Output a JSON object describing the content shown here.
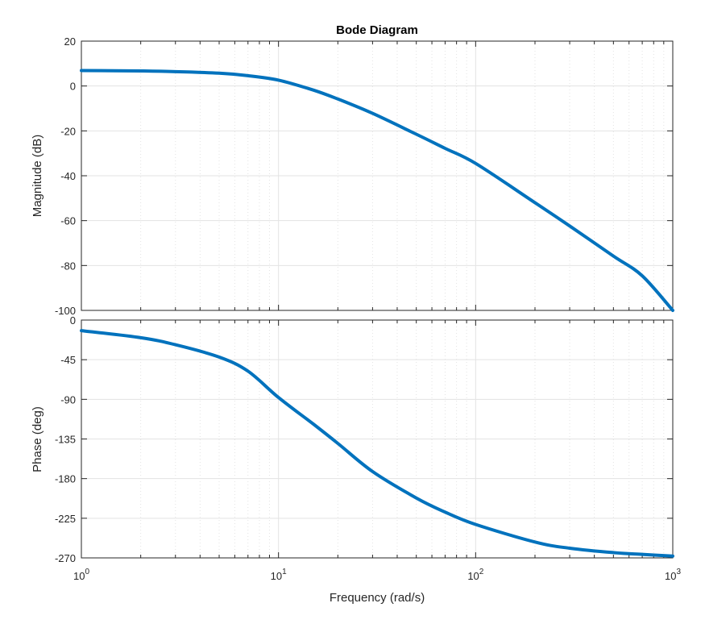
{
  "chart_data": {
    "type": "line",
    "title": "Bode Diagram",
    "xlabel": "Frequency  (rad/s)",
    "xscale": "log",
    "xlim": [
      1,
      1000
    ],
    "x_ticks": [
      {
        "base": "10",
        "exp": "0"
      },
      {
        "base": "10",
        "exp": "1"
      },
      {
        "base": "10",
        "exp": "2"
      },
      {
        "base": "10",
        "exp": "3"
      }
    ],
    "grid": true,
    "line_color": "#0072BD",
    "panels": [
      {
        "ylabel": "Magnitude (dB)",
        "ylim": [
          -100,
          20
        ],
        "y_ticks": [
          "20",
          "0",
          "-20",
          "-40",
          "-60",
          "-80",
          "-100"
        ],
        "x": [
          1,
          2,
          3,
          5,
          7,
          10,
          15,
          20,
          30,
          50,
          70,
          100,
          200,
          300,
          500,
          700,
          1000
        ],
        "y": [
          6.9,
          6.7,
          6.4,
          5.7,
          4.6,
          2.6,
          -1.8,
          -5.8,
          -12.2,
          -21.5,
          -27.8,
          -34.5,
          -52.0,
          -62.4,
          -75.8,
          -84.6,
          -100.0
        ]
      },
      {
        "ylabel": "Phase (deg)",
        "ylim": [
          -270,
          0
        ],
        "y_ticks": [
          "0",
          "-45",
          "-90",
          "-135",
          "-180",
          "-225",
          "-270"
        ],
        "x": [
          1,
          2,
          3,
          5,
          7,
          10,
          15,
          20,
          30,
          50,
          70,
          100,
          200,
          300,
          500,
          700,
          1000
        ],
        "y": [
          -12,
          -20,
          -28,
          -42,
          -58,
          -88,
          -118,
          -140,
          -172,
          -202,
          -218,
          -232,
          -252,
          -259,
          -264,
          -266,
          -268
        ]
      }
    ]
  }
}
